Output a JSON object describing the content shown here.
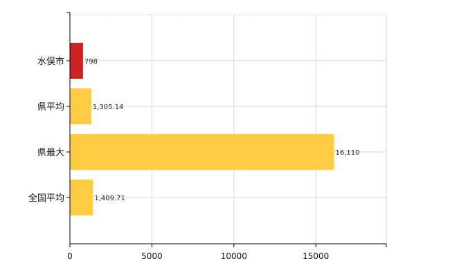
{
  "chart_data": {
    "type": "bar",
    "orientation": "horizontal",
    "categories": [
      "水俣市",
      "県平均",
      "県最大",
      "全国平均"
    ],
    "values": [
      798,
      1305.14,
      16110,
      1409.71
    ],
    "value_labels": [
      "798",
      "1,305.14",
      "16,110",
      "1,409.71"
    ],
    "bar_colors": [
      "#cc2222",
      "#ffcc44",
      "#ffcc44",
      "#ffcc44"
    ],
    "xlim": [
      0,
      19300
    ],
    "x_ticks": [
      0,
      5000,
      10000,
      15000
    ],
    "x_tick_labels": [
      "0",
      "5000",
      "10000",
      "15000"
    ],
    "grid": true,
    "title": "",
    "xlabel": "",
    "ylabel": ""
  }
}
